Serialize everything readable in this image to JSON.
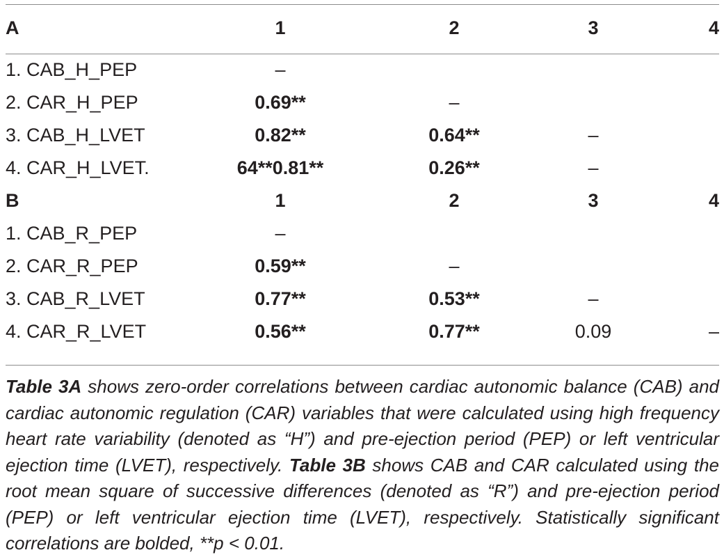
{
  "table": {
    "sections": [
      {
        "header": {
          "label": "A",
          "c1": "1",
          "c2": "2",
          "c3": "3",
          "c4": "4"
        },
        "rows": [
          {
            "label": "1. CAB_H_PEP",
            "c1": "–",
            "c2": "",
            "c3": "",
            "c4": ""
          },
          {
            "label": "2. CAR_H_PEP",
            "c1": "0.69**",
            "c2": "–",
            "c3": "",
            "c4": ""
          },
          {
            "label": "3. CAB_H_LVET",
            "c1": "0.82**",
            "c2": "0.64**",
            "c3": "–",
            "c4": ""
          },
          {
            "label": "4. CAR_H_LVET.",
            "c1": "64**0.81**",
            "c2": "0.26**",
            "c3": "–",
            "c4": ""
          }
        ]
      },
      {
        "header": {
          "label": "B",
          "c1": "1",
          "c2": "2",
          "c3": "3",
          "c4": "4"
        },
        "rows": [
          {
            "label": "1. CAB_R_PEP",
            "c1": "–",
            "c2": "",
            "c3": "",
            "c4": ""
          },
          {
            "label": "2. CAR_R_PEP",
            "c1": "0.59**",
            "c2": "–",
            "c3": "",
            "c4": ""
          },
          {
            "label": "3. CAB_R_LVET",
            "c1": "0.77**",
            "c2": "0.53**",
            "c3": "–",
            "c4": ""
          },
          {
            "label": "4. CAR_R_LVET",
            "c1": "0.56**",
            "c2": "0.77**",
            "c3": "0.09",
            "c4": "–"
          }
        ]
      }
    ]
  },
  "caption": {
    "ref_a": "Table 3A",
    "text_a": " shows zero-order correlations between cardiac autonomic balance (CAB) and cardiac autonomic regulation (CAR) variables that were calculated using high frequency heart rate variability (denoted as “H”) and pre-ejection period (PEP) or left ventricular ejection time (LVET), respectively. ",
    "ref_b": "Table 3B",
    "text_b": " shows CAB and CAR calculated using the root mean square of successive differences (denoted as “R”) and pre-ejection period (PEP) or left ventricular ejection time (LVET), respectively. Statistically significant correlations are bolded, **p < 0.01."
  }
}
